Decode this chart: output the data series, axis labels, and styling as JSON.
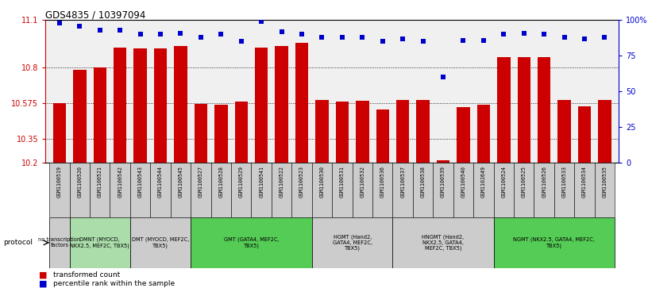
{
  "title": "GDS4835 / 10397094",
  "samples": [
    "GSM1100519",
    "GSM1100520",
    "GSM1100521",
    "GSM1100542",
    "GSM1100543",
    "GSM1100544",
    "GSM1100545",
    "GSM1100527",
    "GSM1100528",
    "GSM1100529",
    "GSM1100541",
    "GSM1100522",
    "GSM1100523",
    "GSM1100530",
    "GSM1100531",
    "GSM1100532",
    "GSM1100536",
    "GSM1100537",
    "GSM1100538",
    "GSM1100539",
    "GSM1100540",
    "GSM1102649",
    "GSM1100524",
    "GSM1100525",
    "GSM1100526",
    "GSM1100533",
    "GSM1100534",
    "GSM1100535"
  ],
  "bar_values": [
    10.575,
    10.785,
    10.8,
    10.925,
    10.92,
    10.92,
    10.935,
    10.57,
    10.565,
    10.585,
    10.925,
    10.935,
    10.955,
    10.595,
    10.585,
    10.59,
    10.535,
    10.595,
    10.595,
    10.215,
    10.55,
    10.565,
    10.865,
    10.865,
    10.865,
    10.595,
    10.555,
    10.595
  ],
  "percentile_values": [
    98,
    96,
    93,
    93,
    90,
    90,
    91,
    88,
    90,
    85,
    99,
    92,
    90,
    88,
    88,
    88,
    85,
    87,
    85,
    60,
    86,
    86,
    90,
    91,
    90,
    88,
    87,
    88
  ],
  "protocol_groups": [
    {
      "label": "no transcription\nfactors",
      "start": 0,
      "end": 0,
      "color": "#cccccc"
    },
    {
      "label": "DMNT (MYOCD,\nNKX2.5, MEF2C, TBX5)",
      "start": 1,
      "end": 3,
      "color": "#aaddaa"
    },
    {
      "label": "DMT (MYOCD, MEF2C,\nTBX5)",
      "start": 4,
      "end": 6,
      "color": "#cccccc"
    },
    {
      "label": "GMT (GATA4, MEF2C,\nTBX5)",
      "start": 7,
      "end": 12,
      "color": "#55cc55"
    },
    {
      "label": "HGMT (Hand2,\nGATA4, MEF2C,\nTBX5)",
      "start": 13,
      "end": 16,
      "color": "#cccccc"
    },
    {
      "label": "HNGMT (Hand2,\nNKX2.5, GATA4,\nMEF2C, TBX5)",
      "start": 17,
      "end": 21,
      "color": "#cccccc"
    },
    {
      "label": "NGMT (NKX2.5, GATA4, MEF2C,\nTBX5)",
      "start": 22,
      "end": 27,
      "color": "#55cc55"
    }
  ],
  "sample_group_colors": [
    "#cccccc",
    "#cccccc",
    "#cccccc",
    "#cccccc",
    "#cccccc",
    "#cccccc",
    "#cccccc",
    "#cccccc",
    "#cccccc",
    "#cccccc",
    "#cccccc",
    "#cccccc",
    "#cccccc",
    "#cccccc",
    "#cccccc",
    "#cccccc",
    "#cccccc",
    "#cccccc",
    "#cccccc",
    "#cccccc",
    "#cccccc",
    "#cccccc",
    "#cccccc",
    "#cccccc",
    "#cccccc",
    "#cccccc",
    "#cccccc",
    "#cccccc"
  ],
  "ylim_left": [
    10.2,
    11.1
  ],
  "ylim_right": [
    0,
    100
  ],
  "yticks_left": [
    10.2,
    10.35,
    10.575,
    10.8,
    11.1
  ],
  "ytick_labels_left": [
    "10.2",
    "10.35",
    "10.575",
    "10.8",
    "11.1"
  ],
  "yticks_right": [
    0,
    25,
    50,
    75,
    100
  ],
  "ytick_labels_right": [
    "0",
    "25",
    "50",
    "75",
    "100%"
  ],
  "bar_color": "#cc0000",
  "dot_color": "#0000cc",
  "grid_dotted_vals": [
    10.35,
    10.575,
    10.8
  ]
}
